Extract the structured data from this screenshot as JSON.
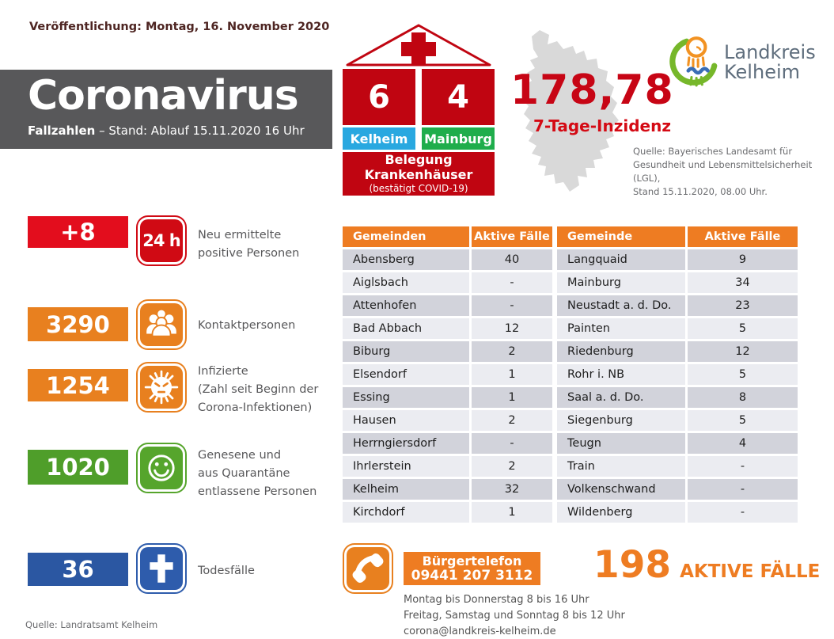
{
  "publication": "Veröffentlichung: Montag, 16. November 2020",
  "banner": {
    "title": "Coronavirus",
    "subtitle_bold": "Fallzahlen",
    "subtitle_rest": " – Stand: Ablauf 15.11.2020 16 Uhr"
  },
  "hospitals": {
    "left_value": "6",
    "right_value": "4",
    "left_label": "Kelheim",
    "right_label": "Mainburg",
    "caption": "Belegung\nKrankenhäuser",
    "caption_note": "(bestätigt COVID-19)"
  },
  "incidence": {
    "value": "178,78",
    "label": "7-Tage-Inzidenz",
    "source_lines": [
      "Quelle: Bayerisches Landesamt für",
      "Gesundheit und Lebensmittelsicherheit (LGL),",
      "Stand 15.11.2020, 08.00 Uhr."
    ]
  },
  "logo": {
    "line1": "Landkreis",
    "line2": "Kelheim"
  },
  "stats": [
    {
      "value": "+8",
      "icon_text": "24 h",
      "label": "Neu ermittelte\npositive Personen"
    },
    {
      "value": "3290",
      "label": "Kontaktpersonen"
    },
    {
      "value": "1254",
      "label": "Infizierte\n(Zahl seit Beginn der\nCorona-Infektionen)"
    },
    {
      "value": "1020",
      "label": "Genesene und\naus Quarantäne\nentlassene Personen"
    },
    {
      "value": "36",
      "label": "Todesfälle"
    }
  ],
  "table": {
    "left": {
      "header_name": "Gemeinden",
      "header_value": "Aktive Fälle",
      "rows": [
        [
          "Abensberg",
          "40"
        ],
        [
          "Aiglsbach",
          "-"
        ],
        [
          "Attenhofen",
          "-"
        ],
        [
          "Bad Abbach",
          "12"
        ],
        [
          "Biburg",
          "2"
        ],
        [
          "Elsendorf",
          "1"
        ],
        [
          "Essing",
          "1"
        ],
        [
          "Hausen",
          "2"
        ],
        [
          "Herrngiersdorf",
          "-"
        ],
        [
          "Ihrlerstein",
          "2"
        ],
        [
          "Kelheim",
          "32"
        ],
        [
          "Kirchdorf",
          "1"
        ]
      ]
    },
    "right": {
      "header_name": "Gemeinde",
      "header_value": "Aktive Fälle",
      "rows": [
        [
          "Langquaid",
          "9"
        ],
        [
          "Mainburg",
          "34"
        ],
        [
          "Neustadt a. d. Do.",
          "23"
        ],
        [
          "Painten",
          "5"
        ],
        [
          "Riedenburg",
          "12"
        ],
        [
          "Rohr i. NB",
          "5"
        ],
        [
          "Saal a. d. Do.",
          "8"
        ],
        [
          "Siegenburg",
          "5"
        ],
        [
          "Teugn",
          "4"
        ],
        [
          "Train",
          "-"
        ],
        [
          "Volkenschwand",
          "-"
        ],
        [
          "Wildenberg",
          "-"
        ]
      ]
    }
  },
  "hotline": {
    "label": "Bürgertelefon",
    "phone": "09441 207 3112",
    "hours_lines": [
      "Montag bis Donnerstag 8 bis 16 Uhr",
      "Freitag, Samstag und Sonntag 8 bis 12 Uhr",
      "corona@landkreis-kelheim.de"
    ]
  },
  "active_total": {
    "value": "198",
    "label": "AKTIVE FÄLLE"
  },
  "footer_source": "Quelle: Landratsamt Kelheim",
  "colors": {
    "accent_red": "#e30d1d",
    "hospital_red": "#c00511",
    "icon_red": "#d00a14",
    "orange": "#e8801f",
    "table_header_orange": "#ee7c22",
    "green": "#4f9e2a",
    "death_blue": "#2b57a2",
    "kelheim_blue": "#29a8e0",
    "mainburg_green": "#1fad4b",
    "incidence_red": "#c70515",
    "banner_gray": "#58585a",
    "row_dark": "#d2d3db",
    "row_light": "#ebecf1"
  }
}
